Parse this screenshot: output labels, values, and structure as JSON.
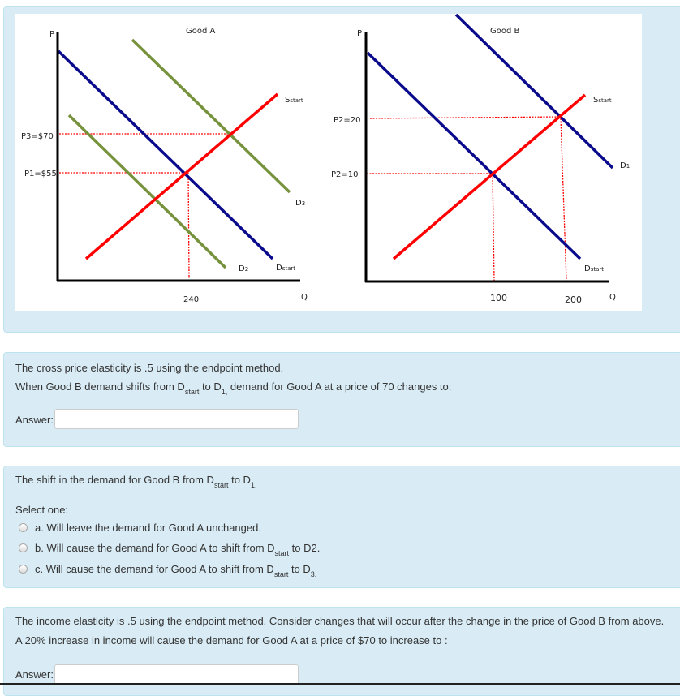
{
  "figure": {
    "good_a": {
      "title": "Good A",
      "p_axis": "P",
      "q_axis": "Q",
      "p3_label": "P3=$70",
      "p1_label": "P1=$55",
      "q_tick": "240",
      "s_label": "S",
      "s_sub": "start",
      "d3_label": "D",
      "d3_sub": "3",
      "d2_label": "D",
      "d2_sub": "2",
      "dstart_label": "D",
      "dstart_sub": "start"
    },
    "good_b": {
      "title": "Good B",
      "p_axis": "P",
      "q_axis": "Q",
      "p20_label": "P2=20",
      "p10_label": "P2=10",
      "q_tick_1": "100",
      "q_tick_2": "200",
      "s_label": "S",
      "s_sub": "start",
      "d1_label": "D",
      "d1_sub": "1",
      "dstart_label": "D",
      "dstart_sub": "start"
    },
    "colors": {
      "demand": "#0a0a8c",
      "supply": "#ff0000",
      "shifted_demand": "#76923c",
      "guide": "#ff0000"
    }
  },
  "q1": {
    "line1": "The cross price elasticity is .5 using the endpoint method.",
    "line2_a": "When Good B demand shifts from D",
    "line2_sub1": "start",
    "line2_b": " to D",
    "line2_sub2": "1,",
    "line2_c": " demand for Good A at a price of 70 changes to:",
    "answer_label": "Answer:",
    "answer_value": ""
  },
  "q2": {
    "line1_a": "The shift in the demand for Good B from D",
    "line1_sub1": "start",
    "line1_b": " to D",
    "line1_sub2": "1,",
    "select_label": "Select one:",
    "options": [
      {
        "text_a": "a. Will leave the demand for Good A unchanged.",
        "sub": "",
        "text_b": ""
      },
      {
        "text_a": "b. Will cause the demand for Good A to shift from D",
        "sub": "start",
        "text_b": " to D2."
      },
      {
        "text_a": "c. Will cause the demand for Good A to shift from D",
        "sub": "start",
        "text_b": " to D",
        "sub2": "3."
      }
    ]
  },
  "q3": {
    "line1": "The income elasticity is .5 using the endpoint method. Consider changes that will occur after the change in the price of Good B from above.",
    "line2": " A 20% increase in income will cause the demand for Good A at a price of $70 to increase to :",
    "answer_label": "Answer:",
    "answer_value": ""
  }
}
